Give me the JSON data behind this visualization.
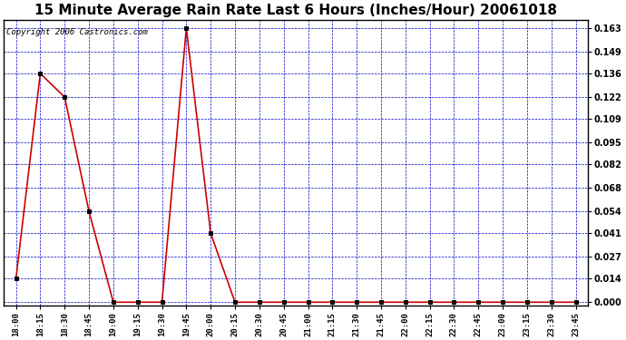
{
  "title": "15 Minute Average Rain Rate Last 6 Hours (Inches/Hour) 20061018",
  "copyright": "Copyright 2006 Castronics.com",
  "x_labels": [
    "18:00",
    "18:15",
    "18:30",
    "18:45",
    "19:00",
    "19:15",
    "19:30",
    "19:45",
    "20:00",
    "20:15",
    "20:30",
    "20:45",
    "21:00",
    "21:15",
    "21:30",
    "21:45",
    "22:00",
    "22:15",
    "22:30",
    "22:45",
    "23:00",
    "23:15",
    "23:30",
    "23:45"
  ],
  "y_values": [
    0.014,
    0.136,
    0.122,
    0.054,
    0.0,
    0.0,
    0.0,
    0.163,
    0.041,
    0.0,
    0.0,
    0.0,
    0.0,
    0.0,
    0.0,
    0.0,
    0.0,
    0.0,
    0.0,
    0.0,
    0.0,
    0.0,
    0.0,
    0.0
  ],
  "y_ticks": [
    0.0,
    0.014,
    0.027,
    0.041,
    0.054,
    0.068,
    0.082,
    0.095,
    0.109,
    0.122,
    0.136,
    0.149,
    0.163
  ],
  "line_color": "#cc0000",
  "marker": "s",
  "marker_color": "#000000",
  "bg_color": "#ffffff",
  "plot_bg_color": "#ffffff",
  "grid_color": "#0000cc",
  "title_color": "#000000",
  "title_fontsize": 11,
  "copyright_fontsize": 6.5,
  "ylim_min": -0.002,
  "ylim_max": 0.168
}
